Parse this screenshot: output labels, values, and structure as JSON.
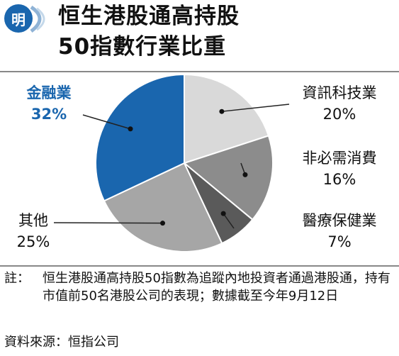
{
  "header": {
    "logo_text": "明",
    "title_line1": "恒生港股通高持股",
    "title_line2": "50指數行業比重"
  },
  "chart_data": {
    "type": "pie",
    "slices": [
      {
        "label": "資訊科技業",
        "value": 20,
        "value_text": "20%",
        "color": "#d9d9d9"
      },
      {
        "label": "非必需消費",
        "value": 16,
        "value_text": "16%",
        "color": "#8c8c8c"
      },
      {
        "label": "醫療保健業",
        "value": 7,
        "value_text": "7%",
        "color": "#5a5a5a"
      },
      {
        "label": "其他",
        "value": 25,
        "value_text": "25%",
        "color": "#a6a6a6"
      },
      {
        "label": "金融業",
        "value": 32,
        "value_text": "32%",
        "color": "#1a66ae"
      }
    ],
    "highlight_color": "#1a66ae"
  },
  "footnote": {
    "prefix": "註：",
    "text": "恒生港股通高持股50指數為追蹤內地投資者通過港股通，持有市值前50名港股公司的表現；數據截至今年9月12日"
  },
  "source": "資料來源：恒指公司"
}
